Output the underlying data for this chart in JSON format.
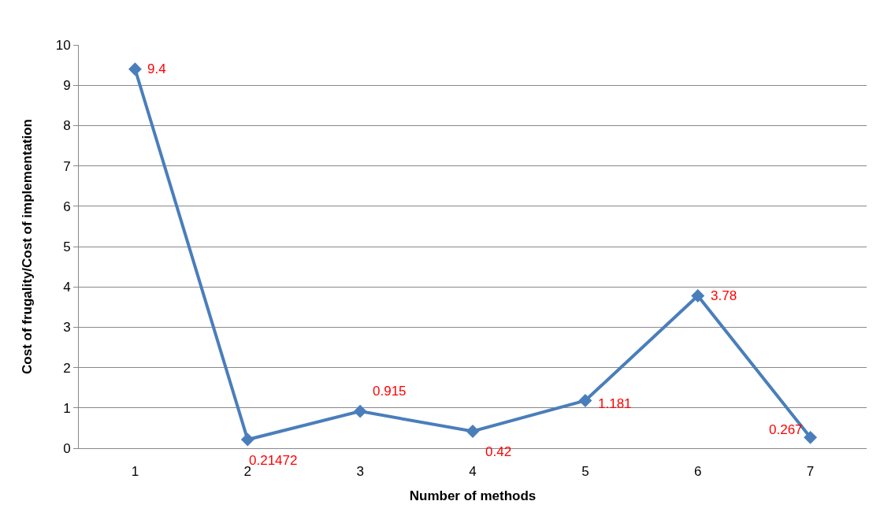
{
  "chart_data": {
    "type": "line",
    "xlabel": "Number of methods",
    "ylabel": "Cost of frugality/Cost of implementation",
    "categories": [
      "1",
      "2",
      "3",
      "4",
      "5",
      "6",
      "7"
    ],
    "values": [
      9.4,
      0.21472,
      0.915,
      0.42,
      1.181,
      3.78,
      0.267
    ],
    "color": "#4a7ebb",
    "marker": "diamond",
    "line_style": "solid",
    "ylim": [
      0,
      10
    ],
    "yticks": [
      0,
      1,
      2,
      3,
      4,
      5,
      6,
      7,
      8,
      9,
      10
    ],
    "grid": "y",
    "data_labels": true
  }
}
